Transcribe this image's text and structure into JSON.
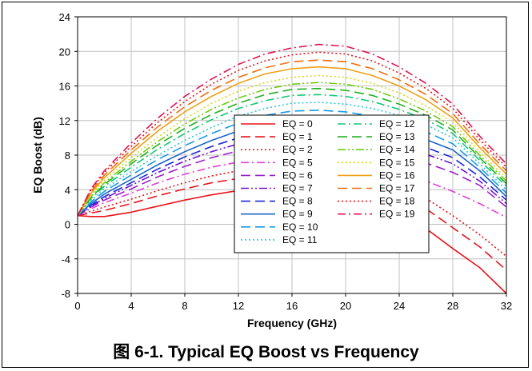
{
  "caption": "图 6-1. Typical EQ Boost vs Frequency",
  "chart_data": {
    "type": "line",
    "title": "",
    "xlabel": "Frequency (GHz)",
    "ylabel": "EQ Boost (dB)",
    "xlim": [
      0,
      32
    ],
    "ylim": [
      -8,
      24
    ],
    "xticks": [
      0,
      4,
      8,
      12,
      16,
      20,
      24,
      28,
      32
    ],
    "yticks": [
      -8,
      -4,
      0,
      4,
      8,
      12,
      16,
      20,
      24
    ],
    "grid": true,
    "legend_position": "center",
    "x": [
      0,
      1,
      2,
      4,
      6,
      8,
      10,
      12,
      14,
      16,
      18,
      20,
      22,
      24,
      26,
      28,
      30,
      32
    ],
    "series": [
      {
        "name": "EQ = 0",
        "color": "#e8141c",
        "dash": "solid",
        "values": [
          1.0,
          0.9,
          0.9,
          1.4,
          2.1,
          2.8,
          3.4,
          3.9,
          4.1,
          4.2,
          4.1,
          3.7,
          2.9,
          1.6,
          -0.5,
          -2.8,
          -5.0,
          -8.0
        ]
      },
      {
        "name": "EQ = 1",
        "color": "#e8141c",
        "dash": "longdash",
        "values": [
          1.0,
          1.3,
          1.6,
          2.4,
          3.3,
          4.1,
          4.8,
          5.3,
          5.6,
          5.7,
          5.6,
          5.2,
          4.5,
          3.5,
          1.8,
          -0.4,
          -2.6,
          -5.3
        ]
      },
      {
        "name": "EQ = 2",
        "color": "#e8141c",
        "dash": "dot",
        "values": [
          1.0,
          1.5,
          2.0,
          2.9,
          3.9,
          4.8,
          5.6,
          6.2,
          6.5,
          6.6,
          6.5,
          6.2,
          5.5,
          4.5,
          3.0,
          1.0,
          -1.2,
          -3.7
        ]
      },
      {
        "name": "EQ = 5",
        "color": "#e040d8",
        "dash": "dashdot",
        "values": [
          1.0,
          1.8,
          2.5,
          3.6,
          4.8,
          5.8,
          6.6,
          7.2,
          7.5,
          7.6,
          7.5,
          7.2,
          6.7,
          6.0,
          5.0,
          3.8,
          2.4,
          0.8
        ]
      },
      {
        "name": "EQ = 6",
        "color": "#9a22c8",
        "dash": "longdash",
        "values": [
          1.0,
          2.0,
          2.8,
          4.1,
          5.5,
          6.7,
          7.7,
          8.5,
          9.0,
          9.2,
          9.2,
          9.0,
          8.6,
          7.9,
          7.1,
          6.0,
          4.5,
          2.0
        ]
      },
      {
        "name": "EQ = 7",
        "color": "#6a14d8",
        "dash": "dashdotdot",
        "values": [
          1.0,
          2.1,
          3.0,
          4.5,
          6.0,
          7.3,
          8.4,
          9.3,
          9.9,
          10.2,
          10.2,
          10.0,
          9.6,
          8.9,
          8.1,
          7.0,
          5.0,
          2.4
        ]
      },
      {
        "name": "EQ = 8",
        "color": "#1a2ad8",
        "dash": "longdash",
        "values": [
          1.0,
          2.2,
          3.2,
          4.8,
          6.4,
          7.8,
          9.0,
          10.0,
          10.7,
          11.1,
          11.1,
          10.9,
          10.4,
          9.7,
          8.9,
          7.7,
          5.5,
          2.8
        ]
      },
      {
        "name": "EQ = 9",
        "color": "#1a66cc",
        "dash": "solid",
        "values": [
          1.0,
          2.4,
          3.5,
          5.2,
          6.9,
          8.4,
          9.7,
          10.8,
          11.6,
          12.0,
          12.1,
          11.9,
          11.4,
          10.7,
          9.8,
          8.6,
          6.2,
          3.2
        ]
      },
      {
        "name": "EQ = 10",
        "color": "#1a9ae8",
        "dash": "longdash",
        "values": [
          1.0,
          2.6,
          3.8,
          5.7,
          7.5,
          9.1,
          10.5,
          11.7,
          12.6,
          13.1,
          13.2,
          13.0,
          12.5,
          11.7,
          10.7,
          9.3,
          6.6,
          3.6
        ]
      },
      {
        "name": "EQ = 11",
        "color": "#2ac8d8",
        "dash": "dot",
        "values": [
          1.0,
          2.8,
          4.1,
          6.1,
          8.0,
          9.7,
          11.2,
          12.5,
          13.4,
          14.0,
          14.1,
          13.9,
          13.4,
          12.6,
          11.5,
          10.0,
          7.0,
          4.0
        ]
      },
      {
        "name": "EQ = 12",
        "color": "#14c878",
        "dash": "dashdot",
        "values": [
          1.0,
          3.0,
          4.4,
          6.6,
          8.7,
          10.5,
          12.1,
          13.4,
          14.3,
          14.9,
          15.0,
          14.8,
          14.2,
          13.3,
          12.1,
          10.5,
          7.4,
          4.4
        ]
      },
      {
        "name": "EQ = 13",
        "color": "#22b022",
        "dash": "longdash",
        "values": [
          1.0,
          3.1,
          4.6,
          7.0,
          9.2,
          11.1,
          12.7,
          14.0,
          15.0,
          15.6,
          15.7,
          15.5,
          14.9,
          13.9,
          12.6,
          10.9,
          7.7,
          4.7
        ]
      },
      {
        "name": "EQ = 14",
        "color": "#70cc10",
        "dash": "dashdotdot",
        "values": [
          1.0,
          3.2,
          4.8,
          7.3,
          9.6,
          11.6,
          13.3,
          14.6,
          15.6,
          16.2,
          16.4,
          16.2,
          15.6,
          14.5,
          13.1,
          11.3,
          8.0,
          5.0
        ]
      },
      {
        "name": "EQ = 15",
        "color": "#d8d820",
        "dash": "dot",
        "values": [
          1.0,
          3.4,
          5.1,
          7.7,
          10.1,
          12.2,
          14.0,
          15.4,
          16.4,
          17.0,
          17.2,
          17.0,
          16.3,
          15.2,
          13.7,
          11.8,
          8.4,
          5.3
        ]
      },
      {
        "name": "EQ = 16",
        "color": "#f0a018",
        "dash": "solid",
        "values": [
          1.0,
          3.6,
          5.4,
          8.2,
          10.8,
          13.0,
          14.8,
          16.3,
          17.4,
          18.0,
          18.2,
          18.0,
          17.2,
          16.0,
          14.4,
          12.3,
          8.9,
          5.8
        ]
      },
      {
        "name": "EQ = 17",
        "color": "#f06e10",
        "dash": "longdash",
        "values": [
          1.0,
          3.8,
          5.7,
          8.6,
          11.3,
          13.6,
          15.5,
          17.0,
          18.1,
          18.8,
          19.0,
          18.8,
          18.0,
          16.7,
          15.0,
          12.8,
          9.3,
          6.2
        ]
      },
      {
        "name": "EQ = 18",
        "color": "#e8141c",
        "dash": "dot",
        "values": [
          1.0,
          4.0,
          6.0,
          9.0,
          11.8,
          14.2,
          16.2,
          17.8,
          18.9,
          19.6,
          19.9,
          19.7,
          18.9,
          17.5,
          15.7,
          13.4,
          9.8,
          6.6
        ]
      },
      {
        "name": "EQ = 19",
        "color": "#e01450",
        "dash": "dashdot",
        "values": [
          1.0,
          4.1,
          6.2,
          9.4,
          12.3,
          14.8,
          16.8,
          18.5,
          19.7,
          20.4,
          20.8,
          20.6,
          19.7,
          18.2,
          16.3,
          13.9,
          10.2,
          7.0
        ]
      }
    ]
  }
}
